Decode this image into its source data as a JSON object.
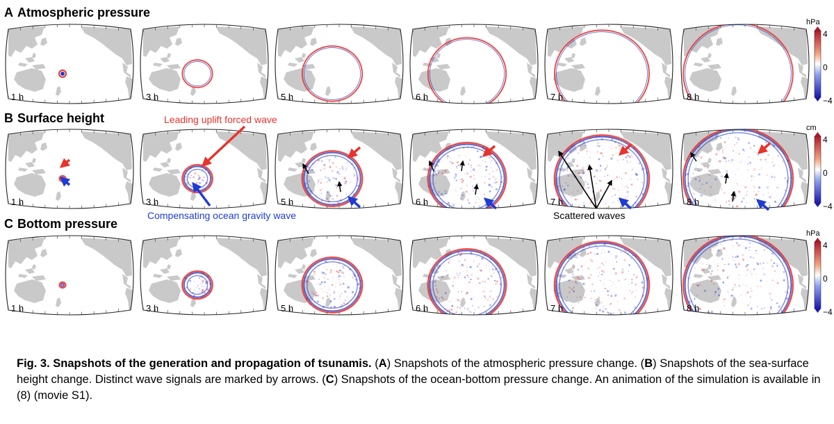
{
  "rows": [
    {
      "letter": "A",
      "title": "Atmospheric pressure",
      "unit": "hPa",
      "cb_max": "4",
      "cb_mid": "0",
      "cb_min": "−4"
    },
    {
      "letter": "B",
      "title": "Surface height",
      "unit": "cm",
      "cb_max": "4",
      "cb_mid": "0",
      "cb_min": "−4"
    },
    {
      "letter": "C",
      "title": "Bottom pressure",
      "unit": "hPa",
      "cb_max": "4",
      "cb_mid": "0",
      "cb_min": "−4"
    }
  ],
  "times": [
    "1 h",
    "3 h",
    "5 h",
    "6 h",
    "7 h",
    "8 h"
  ],
  "wave_fronts": [
    {
      "time": "1 h",
      "radius_deg": 4
    },
    {
      "time": "3 h",
      "radius_deg": 20
    },
    {
      "time": "5 h",
      "radius_deg": 40
    },
    {
      "time": "6 h",
      "radius_deg": 52
    },
    {
      "time": "7 h",
      "radius_deg": 63
    },
    {
      "time": "8 h",
      "radius_deg": 73
    }
  ],
  "annotations": {
    "leading": "Leading uplift forced wave",
    "compensating": "Compensating ocean gravity wave",
    "scattered": "Scattered waves"
  },
  "colors": {
    "positive": "#e8332b",
    "negative": "#1f3bd6",
    "land": "#c9c9c9"
  },
  "caption": {
    "fig": "Fig. 3.",
    "bold_title": "Snapshots of the generation and propagation of tsunamis.",
    "a_open": "(",
    "a_letter": "A",
    "a_text": ") Snapshots of the atmospheric pressure change. (",
    "b_letter": "B",
    "b_text": ") Snapshots of the sea-surface height change. Distinct wave signals are marked by arrows. (",
    "c_letter": "C",
    "c_text": ") Snapshots of the ocean-bottom pressure change. An animation of the simulation is available in (8) (movie S1)."
  }
}
